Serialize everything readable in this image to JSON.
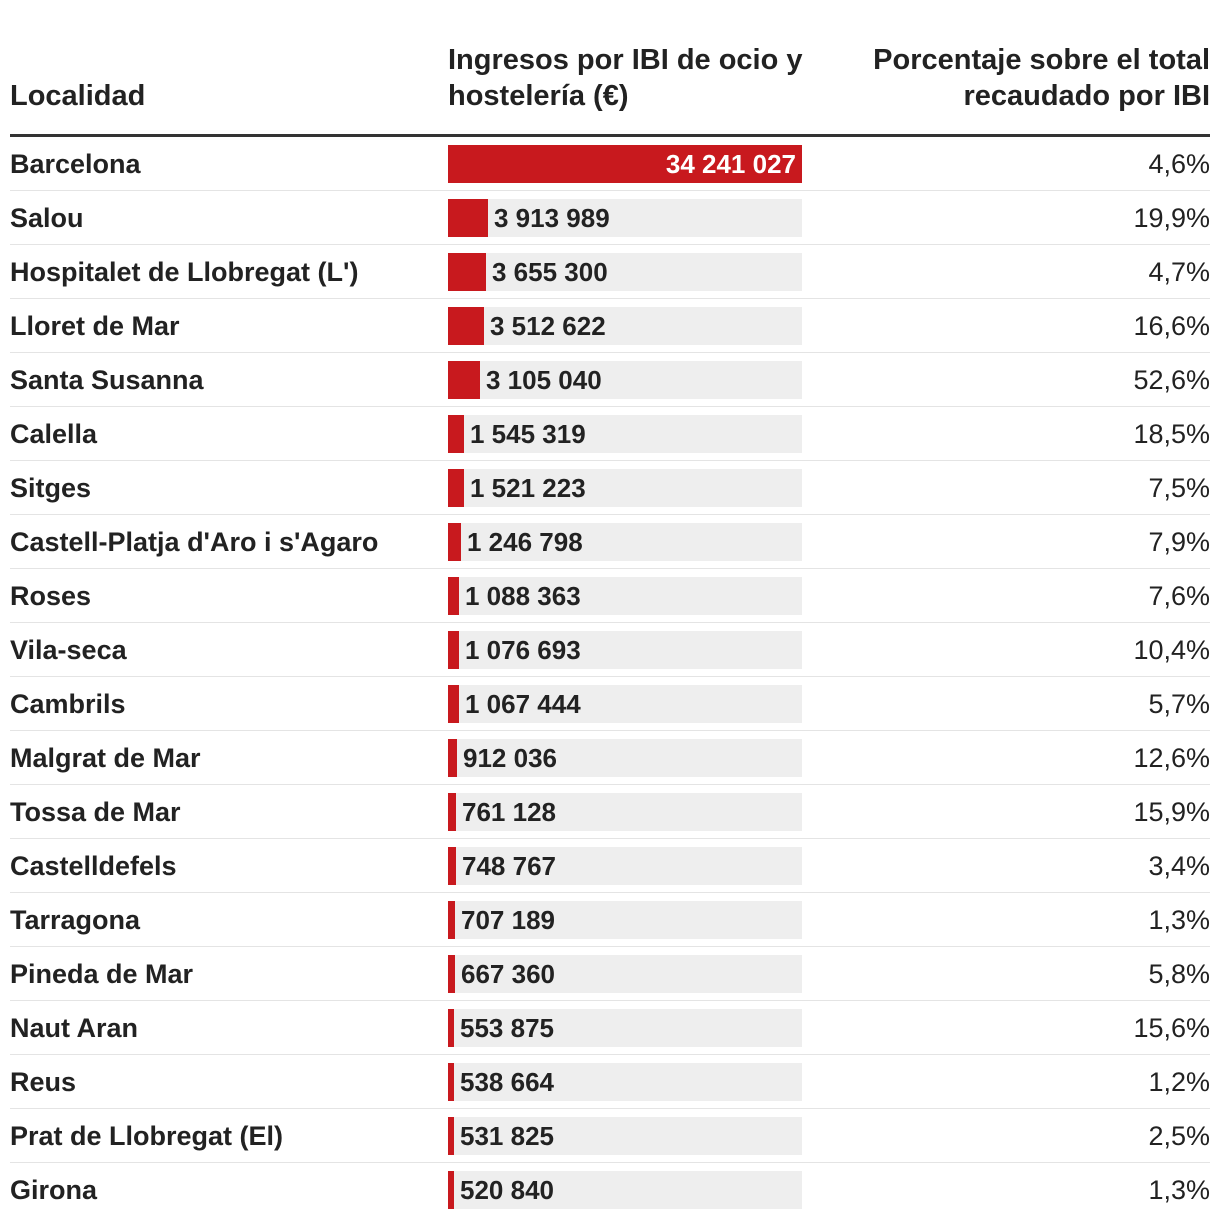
{
  "headers": {
    "localidad": "Localidad",
    "ingresos": "Ingresos por IBI de ocio y hostelería (€)",
    "porcentaje": "Porcentaje sobre el total recaudado por IBI"
  },
  "colors": {
    "bar": "#c8191e",
    "track": "#eeeeee"
  },
  "chart_data": {
    "type": "table",
    "bar_max": 34241027,
    "rows": [
      {
        "localidad": "Barcelona",
        "value": 34241027,
        "value_label": "34 241 027",
        "pct": "4,6%"
      },
      {
        "localidad": "Salou",
        "value": 3913989,
        "value_label": "3 913 989",
        "pct": "19,9%"
      },
      {
        "localidad": "Hospitalet de Llobregat (L')",
        "value": 3655300,
        "value_label": "3 655 300",
        "pct": "4,7%"
      },
      {
        "localidad": "Lloret de Mar",
        "value": 3512622,
        "value_label": "3 512 622",
        "pct": "16,6%"
      },
      {
        "localidad": "Santa Susanna",
        "value": 3105040,
        "value_label": "3 105 040",
        "pct": "52,6%"
      },
      {
        "localidad": "Calella",
        "value": 1545319,
        "value_label": "1 545 319",
        "pct": "18,5%"
      },
      {
        "localidad": "Sitges",
        "value": 1521223,
        "value_label": "1 521 223",
        "pct": "7,5%"
      },
      {
        "localidad": "Castell-Platja d'Aro i s'Agaro",
        "value": 1246798,
        "value_label": "1 246 798",
        "pct": "7,9%"
      },
      {
        "localidad": "Roses",
        "value": 1088363,
        "value_label": "1 088 363",
        "pct": "7,6%"
      },
      {
        "localidad": "Vila-seca",
        "value": 1076693,
        "value_label": "1 076 693",
        "pct": "10,4%"
      },
      {
        "localidad": "Cambrils",
        "value": 1067444,
        "value_label": "1 067 444",
        "pct": "5,7%"
      },
      {
        "localidad": "Malgrat de Mar",
        "value": 912036,
        "value_label": "912 036",
        "pct": "12,6%"
      },
      {
        "localidad": "Tossa de Mar",
        "value": 761128,
        "value_label": "761 128",
        "pct": "15,9%"
      },
      {
        "localidad": "Castelldefels",
        "value": 748767,
        "value_label": "748 767",
        "pct": "3,4%"
      },
      {
        "localidad": "Tarragona",
        "value": 707189,
        "value_label": "707 189",
        "pct": "1,3%"
      },
      {
        "localidad": "Pineda de Mar",
        "value": 667360,
        "value_label": "667 360",
        "pct": "5,8%"
      },
      {
        "localidad": "Naut Aran",
        "value": 553875,
        "value_label": "553 875",
        "pct": "15,6%"
      },
      {
        "localidad": "Reus",
        "value": 538664,
        "value_label": "538 664",
        "pct": "1,2%"
      },
      {
        "localidad": "Prat de Llobregat (El)",
        "value": 531825,
        "value_label": "531 825",
        "pct": "2,5%"
      },
      {
        "localidad": "Girona",
        "value": 520840,
        "value_label": "520 840",
        "pct": "1,3%"
      }
    ]
  }
}
